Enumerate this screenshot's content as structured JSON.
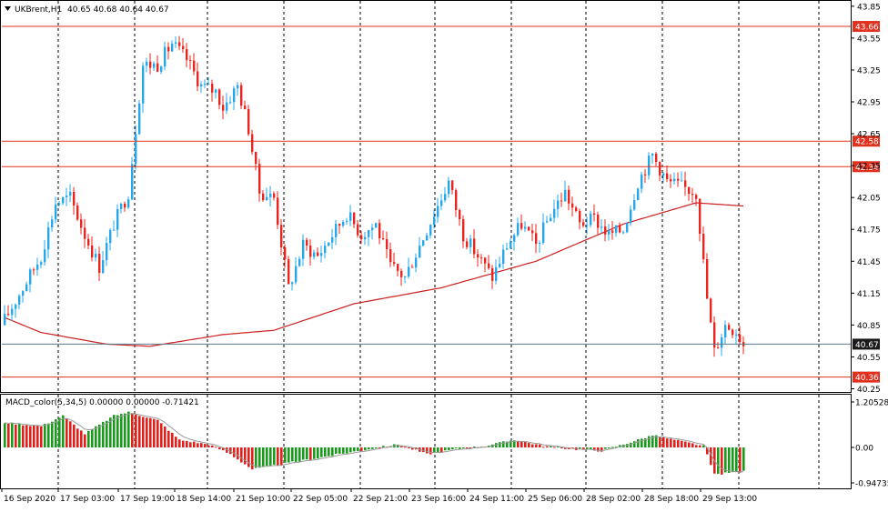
{
  "header": {
    "menu_icon": "triangle-down-icon",
    "symbol_label": "UKBrent,H1",
    "ohlc_text": "40.65 40.68 40.64 40.67"
  },
  "indicator": {
    "label": "MACD_color(5,34,5) 0.00000 0.00000 -0.71421"
  },
  "colors": {
    "bull": "#26A8E8",
    "bear": "#E8251E",
    "ma_line": "#CC1F1F",
    "level_line": "#E0301E",
    "hist_up": "#1A9A1A",
    "hist_down": "#E0201A",
    "signal": "#9A9A9A",
    "grid": "#000000",
    "current_price_line": "#5E7A8A",
    "current_price_bg": "#1A1A1A"
  },
  "price_axis": {
    "ticks": [
      "43.85",
      "43.55",
      "43.25",
      "42.95",
      "42.65",
      "42.35",
      "42.05",
      "41.75",
      "41.45",
      "41.15",
      "40.85",
      "40.55",
      "40.25"
    ]
  },
  "levels": [
    {
      "label": "43.66",
      "value": 43.66
    },
    {
      "label": "42.58",
      "value": 42.58
    },
    {
      "label": "42.34",
      "value": 42.34
    },
    {
      "label": "40.36",
      "value": 40.36
    }
  ],
  "current_price": {
    "label": "40.67",
    "value": 40.67
  },
  "macd_axis": {
    "ticks": [
      "1.20528",
      "0.00",
      "-0.94735"
    ]
  },
  "time_axis": {
    "labels": [
      "16 Sep 2020",
      "17 Sep 03:00",
      "17 Sep 19:00",
      "18 Sep 14:00",
      "21 Sep 10:00",
      "22 Sep 05:00",
      "22 Sep 21:00",
      "23 Sep 16:00",
      "24 Sep 11:00",
      "25 Sep 06:00",
      "28 Sep 02:00",
      "28 Sep 18:00",
      "29 Sep 13:00"
    ]
  },
  "chart_data": {
    "type": "candlestick",
    "symbol": "UKBrent",
    "timeframe": "H1",
    "y_range": [
      40.22,
      43.9
    ],
    "anchors": [
      {
        "i": 0,
        "p": 40.9
      },
      {
        "i": 5,
        "p": 41.2
      },
      {
        "i": 10,
        "p": 41.5
      },
      {
        "i": 14,
        "p": 42.0
      },
      {
        "i": 18,
        "p": 42.05
      },
      {
        "i": 22,
        "p": 41.7
      },
      {
        "i": 26,
        "p": 41.4
      },
      {
        "i": 30,
        "p": 41.8
      },
      {
        "i": 34,
        "p": 42.1
      },
      {
        "i": 38,
        "p": 43.3
      },
      {
        "i": 42,
        "p": 43.3
      },
      {
        "i": 46,
        "p": 43.5
      },
      {
        "i": 50,
        "p": 43.35
      },
      {
        "i": 54,
        "p": 43.1
      },
      {
        "i": 58,
        "p": 43.05
      },
      {
        "i": 60,
        "p": 42.9
      },
      {
        "i": 64,
        "p": 43.1
      },
      {
        "i": 67,
        "p": 42.7
      },
      {
        "i": 70,
        "p": 42.1
      },
      {
        "i": 74,
        "p": 42.05
      },
      {
        "i": 78,
        "p": 41.2
      },
      {
        "i": 82,
        "p": 41.6
      },
      {
        "i": 86,
        "p": 41.5
      },
      {
        "i": 90,
        "p": 41.7
      },
      {
        "i": 94,
        "p": 41.9
      },
      {
        "i": 98,
        "p": 41.7
      },
      {
        "i": 102,
        "p": 41.8
      },
      {
        "i": 106,
        "p": 41.4
      },
      {
        "i": 110,
        "p": 41.3
      },
      {
        "i": 114,
        "p": 41.6
      },
      {
        "i": 118,
        "p": 41.9
      },
      {
        "i": 122,
        "p": 42.2
      },
      {
        "i": 126,
        "p": 41.7
      },
      {
        "i": 130,
        "p": 41.5
      },
      {
        "i": 134,
        "p": 41.3
      },
      {
        "i": 138,
        "p": 41.6
      },
      {
        "i": 142,
        "p": 41.8
      },
      {
        "i": 146,
        "p": 41.6
      },
      {
        "i": 150,
        "p": 41.9
      },
      {
        "i": 154,
        "p": 42.1
      },
      {
        "i": 158,
        "p": 41.8
      },
      {
        "i": 162,
        "p": 41.85
      },
      {
        "i": 166,
        "p": 41.7
      },
      {
        "i": 170,
        "p": 41.75
      },
      {
        "i": 174,
        "p": 42.2
      },
      {
        "i": 178,
        "p": 42.45
      },
      {
        "i": 182,
        "p": 42.2
      },
      {
        "i": 186,
        "p": 42.15
      },
      {
        "i": 190,
        "p": 42.1
      },
      {
        "i": 193,
        "p": 41.1
      },
      {
        "i": 195,
        "p": 40.6
      },
      {
        "i": 198,
        "p": 40.85
      },
      {
        "i": 201,
        "p": 40.8
      },
      {
        "i": 203,
        "p": 40.67
      }
    ],
    "ma_anchors": [
      {
        "i": 0,
        "p": 40.92
      },
      {
        "i": 10,
        "p": 40.78
      },
      {
        "i": 28,
        "p": 40.67
      },
      {
        "i": 40,
        "p": 40.65
      },
      {
        "i": 60,
        "p": 40.76
      },
      {
        "i": 74,
        "p": 40.8
      },
      {
        "i": 96,
        "p": 41.05
      },
      {
        "i": 120,
        "p": 41.2
      },
      {
        "i": 146,
        "p": 41.45
      },
      {
        "i": 170,
        "p": 41.8
      },
      {
        "i": 190,
        "p": 42.0
      },
      {
        "i": 203,
        "p": 41.97
      }
    ],
    "macd_range": [
      -0.94735,
      1.20528
    ],
    "macd_anchors": [
      {
        "i": 0,
        "v": 0.82
      },
      {
        "i": 10,
        "v": 0.7
      },
      {
        "i": 16,
        "v": 1.05
      },
      {
        "i": 22,
        "v": 0.45
      },
      {
        "i": 30,
        "v": 1.05
      },
      {
        "i": 34,
        "v": 1.17
      },
      {
        "i": 42,
        "v": 0.9
      },
      {
        "i": 48,
        "v": 0.25
      },
      {
        "i": 56,
        "v": 0.1
      },
      {
        "i": 62,
        "v": -0.2
      },
      {
        "i": 68,
        "v": -0.65
      },
      {
        "i": 76,
        "v": -0.5
      },
      {
        "i": 84,
        "v": -0.35
      },
      {
        "i": 92,
        "v": -0.2
      },
      {
        "i": 100,
        "v": -0.05
      },
      {
        "i": 108,
        "v": 0.1
      },
      {
        "i": 116,
        "v": -0.2
      },
      {
        "i": 124,
        "v": -0.05
      },
      {
        "i": 132,
        "v": 0.05
      },
      {
        "i": 140,
        "v": 0.25
      },
      {
        "i": 148,
        "v": 0.05
      },
      {
        "i": 156,
        "v": -0.05
      },
      {
        "i": 164,
        "v": -0.1
      },
      {
        "i": 170,
        "v": 0.1
      },
      {
        "i": 178,
        "v": 0.4
      },
      {
        "i": 186,
        "v": 0.2
      },
      {
        "i": 192,
        "v": 0.05
      },
      {
        "i": 195,
        "v": -0.8
      },
      {
        "i": 200,
        "v": -0.75
      },
      {
        "i": 203,
        "v": -0.72
      }
    ]
  }
}
